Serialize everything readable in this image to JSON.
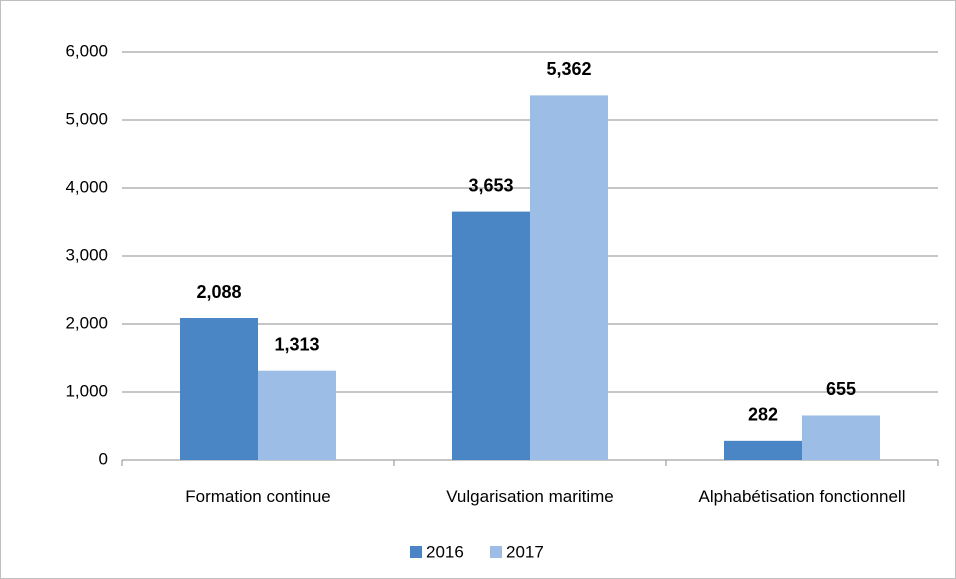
{
  "chart_data": {
    "type": "bar",
    "categories": [
      "Formation continue",
      "Vulgarisation maritime",
      "Alphabétisation fonctionnell"
    ],
    "series": [
      {
        "name": "2016",
        "color": "#4a86c5",
        "values": [
          2088,
          3653,
          282
        ],
        "value_labels": [
          "2,088",
          "3,653",
          "282"
        ]
      },
      {
        "name": "2017",
        "color": "#9cbde5",
        "values": [
          1313,
          5362,
          655
        ],
        "value_labels": [
          "1,313",
          "5,362",
          "655"
        ]
      }
    ],
    "ylim": [
      0,
      6000
    ],
    "yticks": [
      0,
      {
        "value": 1000,
        "label": "1,000"
      },
      {
        "value": 2000,
        "label": "2,000"
      },
      {
        "value": 3000,
        "label": "3,000"
      },
      {
        "value": 4000,
        "label": "4,000"
      },
      {
        "value": 5000,
        "label": "5,000"
      },
      {
        "value": 6000,
        "label": "6,000"
      }
    ],
    "grid": true,
    "legend": "bottom"
  }
}
